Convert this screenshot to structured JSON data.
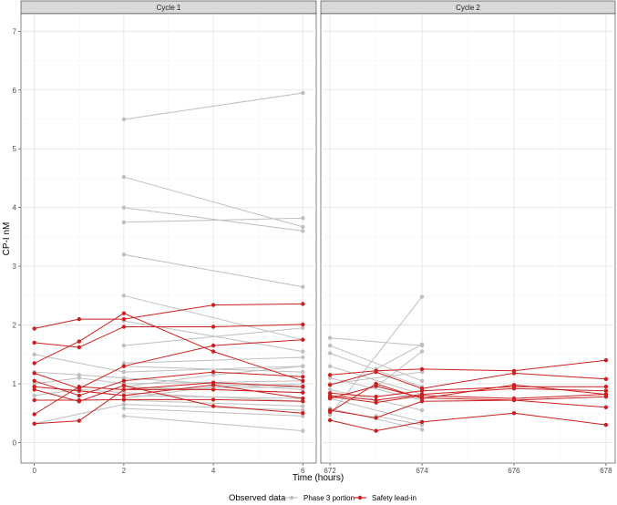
{
  "chart_data": {
    "type": "line",
    "xlabel": "Time (hours)",
    "ylabel": "CP-I nM",
    "ylim": [
      -0.35,
      7.3
    ],
    "y_ticks": [
      0,
      1,
      2,
      3,
      4,
      5,
      6,
      7
    ],
    "grid": true,
    "legend": {
      "title": "Observed data",
      "position": "bottom",
      "entries": [
        {
          "label": "Phase 3 portion",
          "color": "#bfbfbf"
        },
        {
          "label": "Safety lead-in",
          "color": "#cc1f1f"
        }
      ]
    },
    "panels": [
      {
        "title": "Cycle 1",
        "xlim": [
          -0.3,
          6.3
        ],
        "x_ticks": [
          0,
          2,
          4,
          6
        ],
        "x_tick_labels": [
          "0",
          "2",
          "4",
          "6"
        ],
        "series": [
          {
            "group": "Phase 3 portion",
            "x": [
              2,
              6
            ],
            "y": [
              5.5,
              5.95
            ]
          },
          {
            "group": "Phase 3 portion",
            "x": [
              2,
              6
            ],
            "y": [
              4.52,
              3.67
            ]
          },
          {
            "group": "Phase 3 portion",
            "x": [
              2,
              6
            ],
            "y": [
              4.0,
              3.6
            ]
          },
          {
            "group": "Phase 3 portion",
            "x": [
              2,
              6
            ],
            "y": [
              3.75,
              3.82
            ]
          },
          {
            "group": "Phase 3 portion",
            "x": [
              2,
              6
            ],
            "y": [
              3.2,
              2.65
            ]
          },
          {
            "group": "Phase 3 portion",
            "x": [
              2,
              6
            ],
            "y": [
              2.5,
              1.75
            ]
          },
          {
            "group": "Phase 3 portion",
            "x": [
              2,
              6
            ],
            "y": [
              2.07,
              1.55
            ]
          },
          {
            "group": "Phase 3 portion",
            "x": [
              2,
              6
            ],
            "y": [
              1.65,
              1.95
            ]
          },
          {
            "group": "Phase 3 portion",
            "x": [
              2,
              6
            ],
            "y": [
              1.35,
              1.45
            ]
          },
          {
            "group": "Phase 3 portion",
            "x": [
              2,
              6
            ],
            "y": [
              1.3,
              1.2
            ]
          },
          {
            "group": "Phase 3 portion",
            "x": [
              2,
              6
            ],
            "y": [
              1.2,
              1.3
            ]
          },
          {
            "group": "Phase 3 portion",
            "x": [
              2,
              6
            ],
            "y": [
              1.1,
              0.9
            ]
          },
          {
            "group": "Phase 3 portion",
            "x": [
              2,
              6
            ],
            "y": [
              1.0,
              1.05
            ]
          },
          {
            "group": "Phase 3 portion",
            "x": [
              2,
              6
            ],
            "y": [
              0.95,
              0.85
            ]
          },
          {
            "group": "Phase 3 portion",
            "x": [
              2,
              6
            ],
            "y": [
              0.9,
              0.95
            ]
          },
          {
            "group": "Phase 3 portion",
            "x": [
              2,
              6
            ],
            "y": [
              0.85,
              0.7
            ]
          },
          {
            "group": "Phase 3 portion",
            "x": [
              2,
              6
            ],
            "y": [
              0.8,
              0.75
            ]
          },
          {
            "group": "Phase 3 portion",
            "x": [
              2,
              6
            ],
            "y": [
              0.72,
              0.62
            ]
          },
          {
            "group": "Phase 3 portion",
            "x": [
              2,
              6
            ],
            "y": [
              0.65,
              0.55
            ]
          },
          {
            "group": "Phase 3 portion",
            "x": [
              2,
              6
            ],
            "y": [
              0.58,
              0.45
            ]
          },
          {
            "group": "Phase 3 portion",
            "x": [
              2,
              6
            ],
            "y": [
              0.45,
              0.2
            ]
          },
          {
            "group": "Phase 3 portion",
            "x": [
              0,
              2
            ],
            "y": [
              1.5,
              1.2
            ]
          },
          {
            "group": "Phase 3 portion",
            "x": [
              0,
              1,
              2
            ],
            "y": [
              1.2,
              1.15,
              1.1
            ]
          },
          {
            "group": "Phase 3 portion",
            "x": [
              0,
              1,
              2
            ],
            "y": [
              1.0,
              1.1,
              1.0
            ]
          },
          {
            "group": "Phase 3 portion",
            "x": [
              0,
              1,
              2
            ],
            "y": [
              0.8,
              0.9,
              0.85
            ]
          },
          {
            "group": "Phase 3 portion",
            "x": [
              0,
              2
            ],
            "y": [
              0.32,
              0.65
            ]
          },
          {
            "group": "Phase 3 portion",
            "x": [
              2,
              4,
              6
            ],
            "y": [
              0.95,
              1.15,
              1.3
            ]
          },
          {
            "group": "Phase 3 portion",
            "x": [
              2,
              4,
              6
            ],
            "y": [
              0.75,
              0.95,
              1.0
            ]
          },
          {
            "group": "Safety lead-in",
            "x": [
              0,
              1,
              2,
              4,
              6
            ],
            "y": [
              1.94,
              2.1,
              2.1,
              2.34,
              2.36
            ]
          },
          {
            "group": "Safety lead-in",
            "x": [
              0,
              1,
              2,
              4,
              6
            ],
            "y": [
              1.7,
              1.62,
              1.97,
              1.97,
              2.01
            ]
          },
          {
            "group": "Safety lead-in",
            "x": [
              0,
              1,
              2,
              4,
              6
            ],
            "y": [
              1.35,
              1.72,
              2.2,
              1.55,
              1.05
            ]
          },
          {
            "group": "Safety lead-in",
            "x": [
              0,
              1,
              2,
              4,
              6
            ],
            "y": [
              1.18,
              0.92,
              1.3,
              1.65,
              1.75
            ]
          },
          {
            "group": "Safety lead-in",
            "x": [
              0,
              1,
              2,
              4,
              6
            ],
            "y": [
              1.05,
              0.8,
              1.05,
              1.2,
              1.12
            ]
          },
          {
            "group": "Safety lead-in",
            "x": [
              0,
              1,
              2,
              4,
              6
            ],
            "y": [
              0.95,
              0.88,
              0.8,
              0.98,
              0.75
            ]
          },
          {
            "group": "Safety lead-in",
            "x": [
              0,
              1,
              2,
              4,
              6
            ],
            "y": [
              0.9,
              0.7,
              0.97,
              0.62,
              0.5
            ]
          },
          {
            "group": "Safety lead-in",
            "x": [
              0,
              1,
              2,
              4,
              6
            ],
            "y": [
              0.72,
              0.72,
              0.73,
              0.73,
              0.7
            ]
          },
          {
            "group": "Safety lead-in",
            "x": [
              0,
              1,
              2,
              4,
              6
            ],
            "y": [
              0.48,
              0.95,
              0.9,
              1.02,
              0.95
            ]
          },
          {
            "group": "Safety lead-in",
            "x": [
              0,
              1,
              2,
              4,
              6
            ],
            "y": [
              0.32,
              0.37,
              0.9,
              0.9,
              0.85
            ]
          }
        ]
      },
      {
        "title": "Cycle 2",
        "xlim": [
          671.8,
          678.2
        ],
        "x_ticks": [
          672,
          674,
          676,
          678
        ],
        "x_tick_labels": [
          "672",
          "674",
          "676",
          "678"
        ],
        "series": [
          {
            "group": "Phase 3 portion",
            "x": [
              672,
              674
            ],
            "y": [
              1.78,
              1.65
            ]
          },
          {
            "group": "Phase 3 portion",
            "x": [
              672,
              674
            ],
            "y": [
              1.65,
              1.05
            ]
          },
          {
            "group": "Phase 3 portion",
            "x": [
              672,
              674
            ],
            "y": [
              1.52,
              0.95
            ]
          },
          {
            "group": "Phase 3 portion",
            "x": [
              672,
              674
            ],
            "y": [
              1.3,
              0.82
            ]
          },
          {
            "group": "Phase 3 portion",
            "x": [
              672,
              674
            ],
            "y": [
              1.1,
              0.72
            ]
          },
          {
            "group": "Phase 3 portion",
            "x": [
              672,
              674
            ],
            "y": [
              1.0,
              1.2
            ]
          },
          {
            "group": "Phase 3 portion",
            "x": [
              672,
              674
            ],
            "y": [
              0.9,
              0.55
            ]
          },
          {
            "group": "Phase 3 portion",
            "x": [
              672,
              674
            ],
            "y": [
              0.75,
              0.35
            ]
          },
          {
            "group": "Phase 3 portion",
            "x": [
              672,
              674
            ],
            "y": [
              0.58,
              0.22
            ]
          },
          {
            "group": "Phase 3 portion",
            "x": [
              672,
              674
            ],
            "y": [
              0.47,
              2.48
            ]
          },
          {
            "group": "Phase 3 portion",
            "x": [
              673,
              674
            ],
            "y": [
              1.25,
              1.67
            ]
          },
          {
            "group": "Phase 3 portion",
            "x": [
              673,
              674
            ],
            "y": [
              0.95,
              1.55
            ]
          },
          {
            "group": "Phase 3 portion",
            "x": [
              673,
              674
            ],
            "y": [
              0.45,
              0.3
            ]
          },
          {
            "group": "Safety lead-in",
            "x": [
              672,
              673,
              674,
              676,
              678
            ],
            "y": [
              1.15,
              1.22,
              1.25,
              1.22,
              1.4
            ]
          },
          {
            "group": "Safety lead-in",
            "x": [
              672,
              673,
              674,
              676,
              678
            ],
            "y": [
              0.98,
              1.2,
              0.92,
              1.18,
              1.08
            ]
          },
          {
            "group": "Safety lead-in",
            "x": [
              672,
              673,
              674,
              676,
              678
            ],
            "y": [
              0.84,
              0.78,
              0.88,
              0.95,
              0.95
            ]
          },
          {
            "group": "Safety lead-in",
            "x": [
              672,
              673,
              674,
              676,
              678
            ],
            "y": [
              0.8,
              0.72,
              0.82,
              0.92,
              0.88
            ]
          },
          {
            "group": "Safety lead-in",
            "x": [
              672,
              673,
              674,
              676,
              678
            ],
            "y": [
              0.78,
              0.68,
              0.8,
              0.75,
              0.82
            ]
          },
          {
            "group": "Safety lead-in",
            "x": [
              672,
              673,
              674,
              676,
              678
            ],
            "y": [
              0.75,
              0.96,
              0.76,
              0.72,
              0.78
            ]
          },
          {
            "group": "Safety lead-in",
            "x": [
              672,
              673,
              674,
              676,
              678
            ],
            "y": [
              0.55,
              0.42,
              0.7,
              0.72,
              0.6
            ]
          },
          {
            "group": "Safety lead-in",
            "x": [
              672,
              673,
              674,
              676,
              678
            ],
            "y": [
              0.52,
              1.0,
              0.75,
              0.98,
              0.82
            ]
          },
          {
            "group": "Safety lead-in",
            "x": [
              672,
              673,
              674,
              676,
              678
            ],
            "y": [
              0.38,
              0.2,
              0.35,
              0.5,
              0.3
            ]
          }
        ]
      }
    ]
  }
}
